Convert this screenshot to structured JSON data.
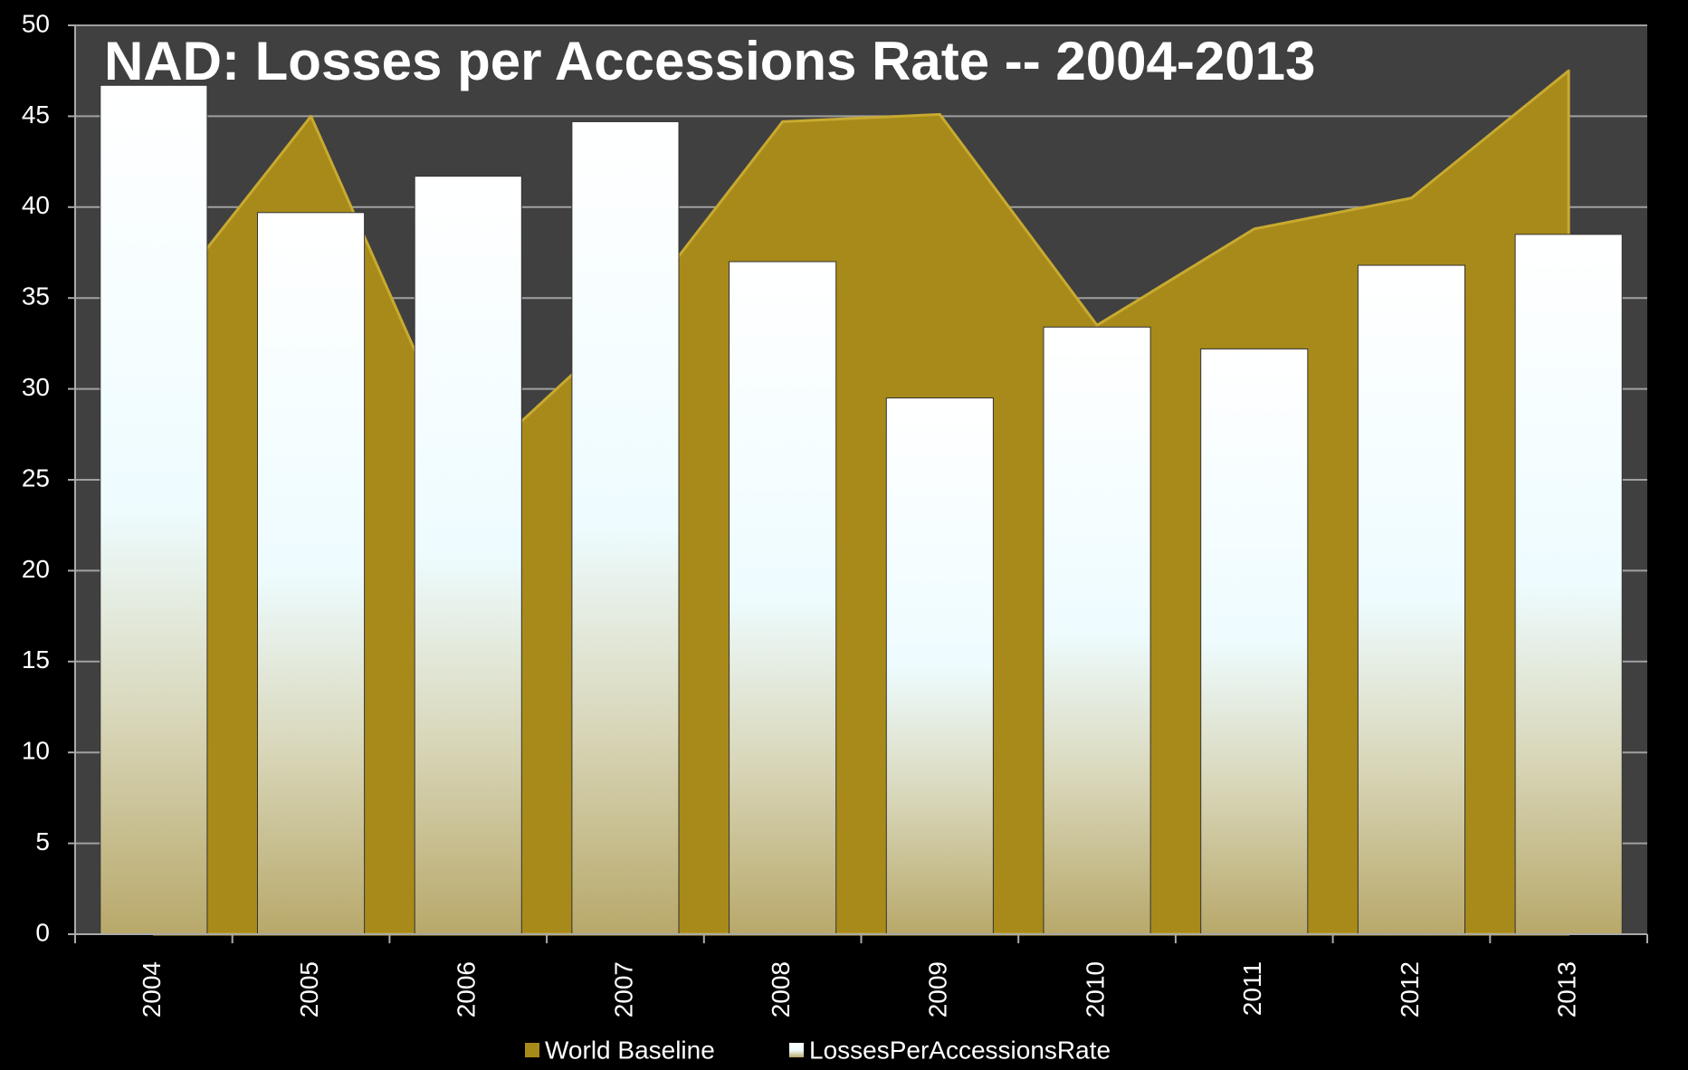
{
  "chart_data": {
    "type": "bar-area",
    "title": "NAD:  Losses per Accessions Rate -- 2004-2013",
    "categories": [
      "2004",
      "2005",
      "2006",
      "2007",
      "2008",
      "2009",
      "2010",
      "2011",
      "2012",
      "2013"
    ],
    "series": [
      {
        "name": "World Baseline",
        "type": "area",
        "color": "#a88a1a",
        "values": [
          34,
          45,
          25.5,
          33.5,
          44.7,
          45.1,
          33.5,
          38.8,
          40.5,
          47.5
        ]
      },
      {
        "name": "LossesPerAccessionsRate",
        "type": "bar",
        "color": "#ffffff",
        "values": [
          46.7,
          39.7,
          41.7,
          44.7,
          37.0,
          29.5,
          33.4,
          32.2,
          36.8,
          38.5
        ]
      }
    ],
    "ylim": [
      0,
      50
    ],
    "yticks": [
      0,
      5,
      10,
      15,
      20,
      25,
      30,
      35,
      40,
      45,
      50
    ],
    "grid": true
  }
}
